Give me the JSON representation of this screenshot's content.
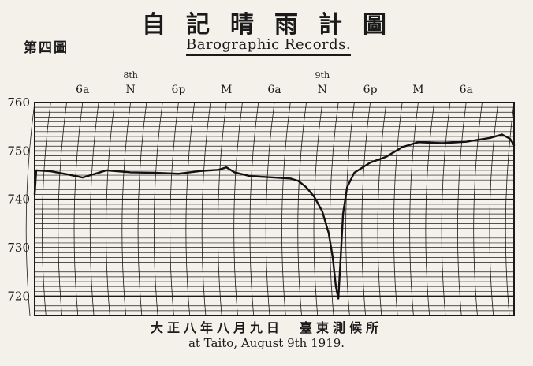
{
  "header": {
    "title_jp": "自記晴雨計圖",
    "figure_label": "第四圖",
    "title_en": "Barographic Records."
  },
  "footer": {
    "caption_jp": "大正八年八月九日　臺東測候所",
    "caption_en": "at Taito, August 9th 1919."
  },
  "chart_data": {
    "type": "line",
    "title": "Barographic Records.",
    "ylim": [
      716,
      760
    ],
    "y_ticks": [
      760,
      750,
      740,
      730,
      720
    ],
    "x_range_hours": [
      0,
      60
    ],
    "time_ticks": [
      {
        "t": 6,
        "label": "6a",
        "day": ""
      },
      {
        "t": 12,
        "label": "N",
        "day": "8th"
      },
      {
        "t": 18,
        "label": "6p",
        "day": ""
      },
      {
        "t": 24,
        "label": "M",
        "day": ""
      },
      {
        "t": 30,
        "label": "6a",
        "day": ""
      },
      {
        "t": 36,
        "label": "N",
        "day": "9th"
      },
      {
        "t": 42,
        "label": "6p",
        "day": ""
      },
      {
        "t": 48,
        "label": "M",
        "day": ""
      },
      {
        "t": 54,
        "label": "6a",
        "day": ""
      }
    ],
    "grid": true,
    "series": [
      {
        "points": [
          [
            0,
            741
          ],
          [
            0.2,
            746
          ],
          [
            2,
            745.8
          ],
          [
            4,
            745.2
          ],
          [
            6,
            744.5
          ],
          [
            7,
            745
          ],
          [
            9,
            746
          ],
          [
            12,
            745.6
          ],
          [
            15,
            745.5
          ],
          [
            18,
            745.3
          ],
          [
            21,
            745.9
          ],
          [
            23,
            746.1
          ],
          [
            24,
            746.6
          ],
          [
            25,
            745.6
          ],
          [
            27,
            744.8
          ],
          [
            30,
            744.5
          ],
          [
            32,
            744.3
          ],
          [
            33,
            743.8
          ],
          [
            34,
            742.5
          ],
          [
            35,
            740.5
          ],
          [
            36,
            737.5
          ],
          [
            36.8,
            733
          ],
          [
            37.3,
            728
          ],
          [
            37.7,
            722
          ],
          [
            38,
            719.5
          ],
          [
            38.3,
            728
          ],
          [
            38.6,
            737
          ],
          [
            39.1,
            742.5
          ],
          [
            40,
            745.5
          ],
          [
            42,
            747.6
          ],
          [
            44,
            748.8
          ],
          [
            46,
            750.8
          ],
          [
            48,
            751.8
          ],
          [
            51,
            751.6
          ],
          [
            54,
            751.9
          ],
          [
            57,
            752.7
          ],
          [
            58.5,
            753.4
          ],
          [
            59.5,
            752.5
          ],
          [
            60,
            751.2
          ]
        ]
      }
    ]
  }
}
